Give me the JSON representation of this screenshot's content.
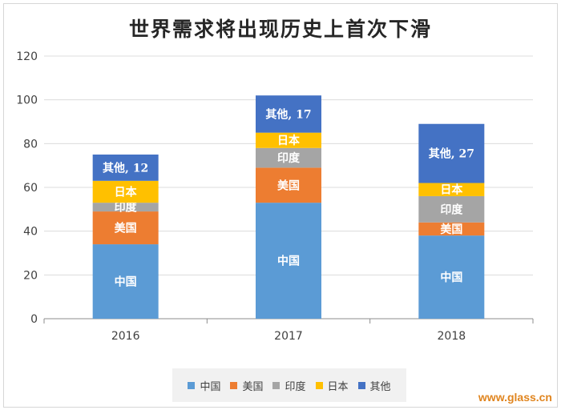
{
  "chart_data": {
    "type": "bar",
    "stacked": true,
    "title": "世界需求将出现历史上首次下滑",
    "categories": [
      "2016",
      "2017",
      "2018"
    ],
    "ylim": [
      0,
      120
    ],
    "yticks": [
      "0",
      "20",
      "40",
      "60",
      "80",
      "100",
      "120"
    ],
    "grid": true,
    "legend_position": "bottom",
    "series": [
      {
        "name": "中国",
        "color": "#5b9bd5",
        "values": [
          34,
          53,
          38
        ],
        "labels": [
          "中国",
          "中国",
          "中国"
        ]
      },
      {
        "name": "美国",
        "color": "#ed7d31",
        "values": [
          15,
          16,
          6
        ],
        "labels": [
          "美国",
          "美国",
          "美国"
        ]
      },
      {
        "name": "印度",
        "color": "#a5a5a5",
        "values": [
          4,
          9,
          12
        ],
        "labels": [
          "印度",
          "印度",
          "印度"
        ]
      },
      {
        "name": "日本",
        "color": "#ffc000",
        "values": [
          10,
          7,
          6
        ],
        "labels": [
          "日本",
          "日本",
          "日本"
        ]
      },
      {
        "name": "其他",
        "color": "#4472c4",
        "values": [
          12,
          17,
          27
        ],
        "labels": [
          "其他, 12",
          "其他, 17",
          "其他, 27"
        ]
      }
    ]
  },
  "watermark": "www.glass.cn"
}
